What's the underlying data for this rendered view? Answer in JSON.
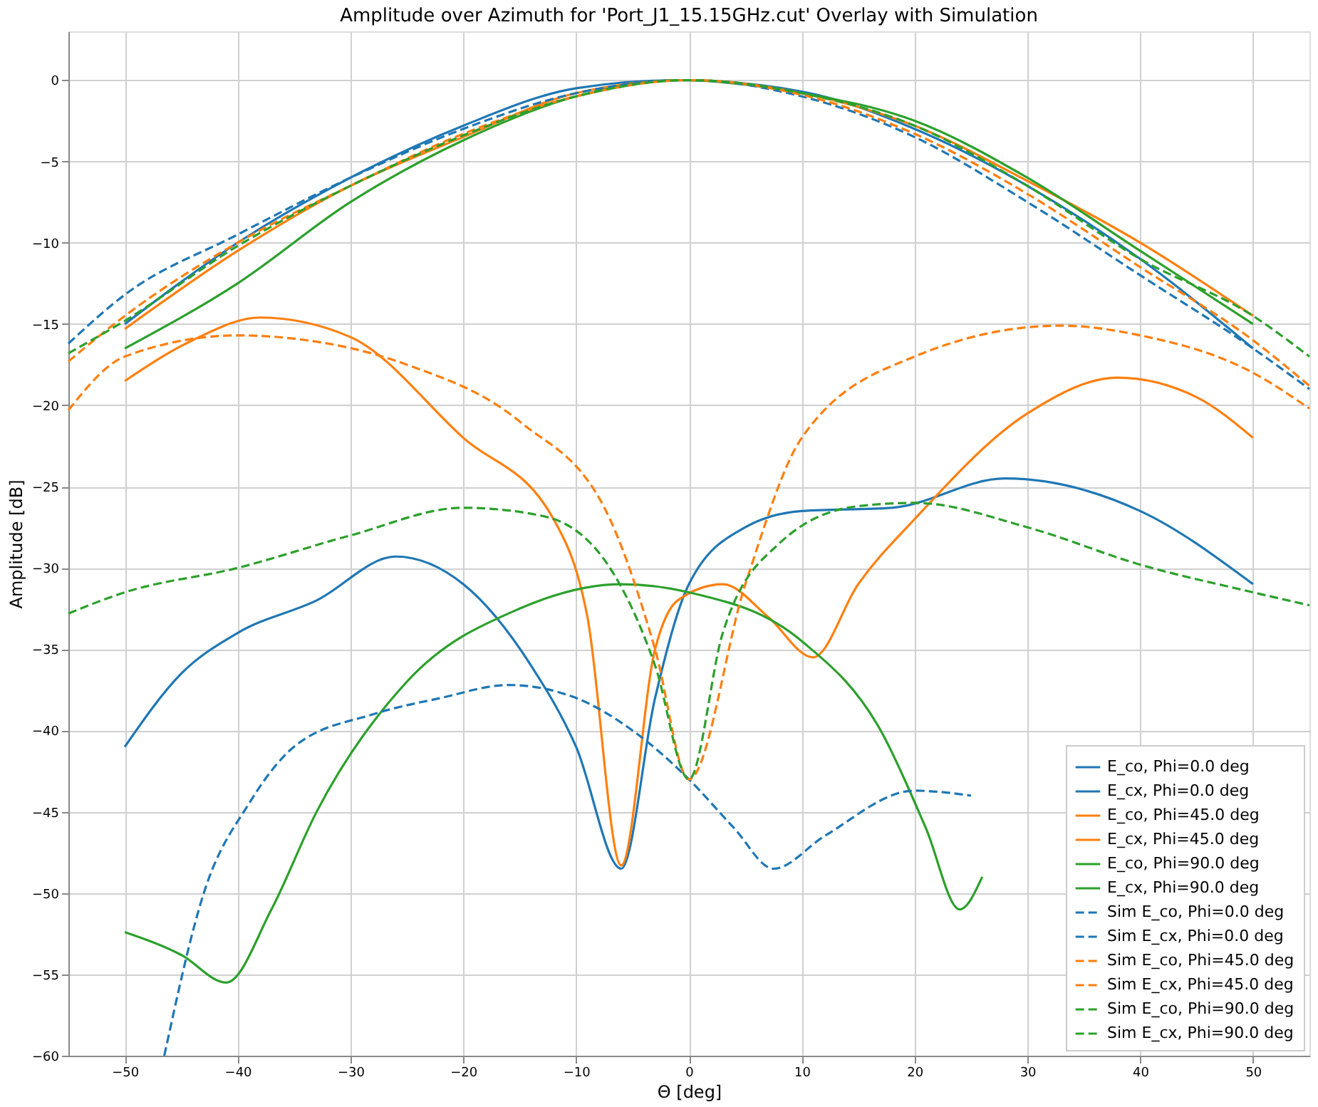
{
  "chart_data": {
    "type": "line",
    "title": "Amplitude over Azimuth for 'Port_J1_15.15GHz.cut' Overlay with Simulation",
    "xlabel": "Θ [deg]",
    "ylabel": "Amplitude [dB]",
    "xlim": [
      -55,
      55
    ],
    "ylim": [
      -60,
      3
    ],
    "xticks": [
      -50,
      -40,
      -30,
      -20,
      -10,
      0,
      10,
      20,
      30,
      40,
      50
    ],
    "yticks": [
      -60,
      -55,
      -50,
      -45,
      -40,
      -35,
      -30,
      -25,
      -20,
      -15,
      -10,
      -5,
      0
    ],
    "grid": true,
    "legend": "bottom right",
    "series": [
      {
        "name": "E_co, Phi=0.0 deg",
        "color": "#1f77b4",
        "line_style": "solid",
        "x": [
          -50,
          -40,
          -30,
          -20,
          -10,
          -1,
          10,
          20,
          30,
          40,
          50
        ],
        "values": [
          -15,
          -10,
          -6,
          -2.8,
          -0.5,
          0,
          -0.7,
          -3,
          -6.5,
          -11,
          -16.5
        ]
      },
      {
        "name": "E_cx, Phi=0.0 deg",
        "color": "#1f77b4",
        "line_style": "solid",
        "x": [
          -50,
          -45,
          -40,
          -33,
          -26,
          -20,
          -14,
          -10,
          -6,
          -3,
          0,
          5,
          10,
          18,
          28,
          40,
          50
        ],
        "values": [
          -41,
          -36.5,
          -34,
          -32,
          -29.3,
          -31,
          -36,
          -41,
          -48.5,
          -38,
          -31,
          -27.5,
          -26.5,
          -26.3,
          -24.5,
          -26.5,
          -31
        ]
      },
      {
        "name": "E_co, Phi=45.0 deg",
        "color": "#ff7f0e",
        "line_style": "solid",
        "x": [
          -50,
          -40,
          -30,
          -20,
          -10,
          0,
          10,
          20,
          30,
          40,
          50
        ],
        "values": [
          -15.3,
          -10.5,
          -6.5,
          -3.5,
          -0.8,
          0,
          -0.8,
          -2.8,
          -6.2,
          -10,
          -14.5
        ]
      },
      {
        "name": "E_cx, Phi=45.0 deg",
        "color": "#ff7f0e",
        "line_style": "solid",
        "x": [
          -50,
          -44,
          -38,
          -30,
          -20,
          -12,
          -9,
          -6,
          -3,
          -1,
          3,
          7,
          11,
          15,
          20,
          30,
          38,
          45,
          50
        ],
        "values": [
          -18.5,
          -16,
          -14.6,
          -15.8,
          -22,
          -27,
          -33,
          -48.3,
          -35,
          -32,
          -31,
          -33,
          -35.5,
          -31,
          -27,
          -20.5,
          -18.3,
          -19.5,
          -22
        ]
      },
      {
        "name": "E_co, Phi=90.0 deg",
        "color": "#2ca02c",
        "line_style": "solid",
        "x": [
          -50,
          -40,
          -30,
          -20,
          -10,
          -1,
          10,
          20,
          30,
          40,
          50
        ],
        "values": [
          -16.5,
          -12.5,
          -7.5,
          -3.7,
          -1,
          0,
          -0.8,
          -2.5,
          -6,
          -10.5,
          -15
        ]
      },
      {
        "name": "E_cx, Phi=90.0 deg",
        "color": "#2ca02c",
        "line_style": "solid",
        "x": [
          -50,
          -45,
          -41,
          -37,
          -33,
          -25,
          -15,
          -6,
          0,
          10,
          17,
          21,
          24,
          26
        ],
        "values": [
          -52.4,
          -53.8,
          -55.5,
          -51,
          -45,
          -37,
          -32.5,
          -31,
          -31.5,
          -34.5,
          -40,
          -46,
          -51,
          -49
        ]
      },
      {
        "name": "Sim E_co, Phi=0.0 deg",
        "color": "#1f77b4",
        "line_style": "dashed",
        "x": [
          -55,
          -50,
          -40,
          -30,
          -20,
          -10,
          0,
          10,
          20,
          30,
          40,
          50,
          55
        ],
        "values": [
          -16.2,
          -13.2,
          -9.5,
          -6,
          -3,
          -0.8,
          0,
          -1,
          -3.5,
          -7.5,
          -12,
          -16.5,
          -19
        ]
      },
      {
        "name": "Sim E_cx, Phi=0.0 deg",
        "color": "#1f77b4",
        "line_style": "dashed",
        "x": [
          -46.5,
          -43,
          -39,
          -35,
          -28,
          -22,
          -16,
          -10,
          -5,
          0,
          4,
          7.5,
          12,
          20,
          25
        ],
        "values": [
          -60,
          -50,
          -44.5,
          -41,
          -39,
          -38,
          -37.2,
          -38,
          -40,
          -43,
          -46,
          -48.5,
          -46.5,
          -43.7,
          -44
        ]
      },
      {
        "name": "Sim E_co, Phi=45.0 deg",
        "color": "#ff7f0e",
        "line_style": "dashed",
        "x": [
          -55,
          -50,
          -40,
          -30,
          -20,
          -10,
          0,
          10,
          20,
          30,
          40,
          50,
          55
        ],
        "values": [
          -17.3,
          -14.5,
          -10,
          -6.5,
          -3.3,
          -1,
          0,
          -0.9,
          -3.3,
          -7,
          -11.5,
          -16,
          -18.8
        ]
      },
      {
        "name": "Sim E_cx, Phi=45.0 deg",
        "color": "#ff7f0e",
        "line_style": "dashed",
        "x": [
          -55,
          -50,
          -40,
          -35,
          -25,
          -15,
          -7,
          -3,
          0,
          5,
          10,
          20,
          33,
          40,
          50,
          55
        ],
        "values": [
          -20.3,
          -17,
          -15.7,
          -15.9,
          -17.5,
          -21,
          -27,
          -35,
          -43,
          -31,
          -22,
          -17,
          -15.1,
          -15.7,
          -18,
          -20.2
        ]
      },
      {
        "name": "Sim E_co, Phi=90.0 deg",
        "color": "#2ca02c",
        "line_style": "dashed",
        "x": [
          -55,
          -50,
          -40,
          -30,
          -20,
          -10,
          0,
          10,
          20,
          30,
          40,
          50,
          55
        ],
        "values": [
          -16.8,
          -14.8,
          -10.2,
          -6.5,
          -3.4,
          -1,
          0,
          -0.8,
          -2.8,
          -6.5,
          -11,
          -14.5,
          -17
        ]
      },
      {
        "name": "Sim E_cx, Phi=90.0 deg",
        "color": "#2ca02c",
        "line_style": "dashed",
        "x": [
          -55,
          -50,
          -40,
          -30,
          -20,
          -13,
          -7,
          -3,
          0,
          3,
          8,
          15,
          20,
          30,
          40,
          50,
          55
        ],
        "values": [
          -32.8,
          -31.5,
          -30,
          -28,
          -26.3,
          -26.8,
          -30,
          -36,
          -43,
          -34,
          -28.5,
          -26.2,
          -26,
          -27.5,
          -29.8,
          -31.5,
          -32.3
        ]
      }
    ]
  }
}
